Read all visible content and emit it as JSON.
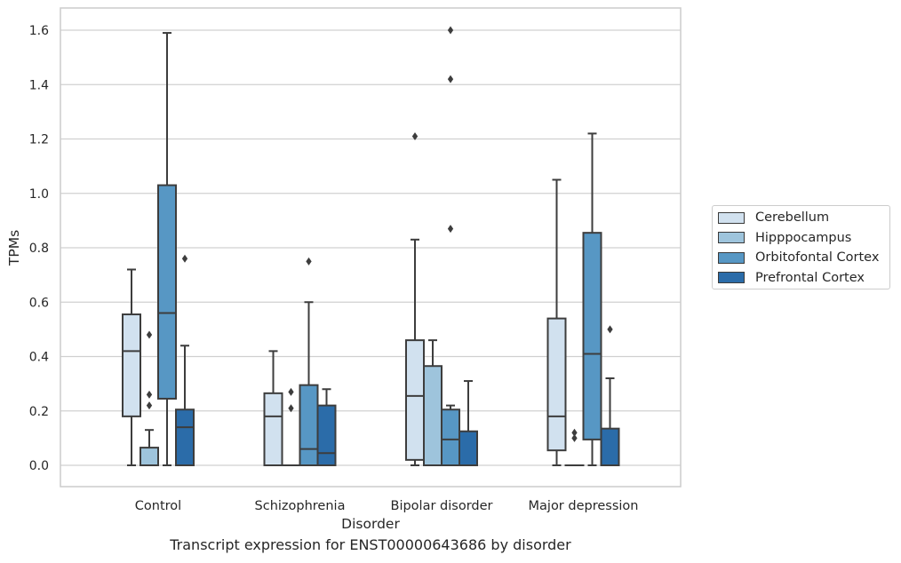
{
  "chart_data": {
    "type": "boxplot",
    "title": "Transcript expression for ENST00000643686 by disorder",
    "xlabel": "Disorder",
    "ylabel": "TPMs",
    "ylim": [
      -0.08,
      1.68
    ],
    "yticks": [
      "0.0",
      "0.2",
      "0.4",
      "0.6",
      "0.8",
      "1.0",
      "1.2",
      "1.4",
      "1.6"
    ],
    "grid": true,
    "legend_position": "right",
    "categories": [
      "Control",
      "Schizophrenia",
      "Bipolar disorder",
      "Major depression"
    ],
    "series": [
      {
        "name": "Cerebellum",
        "color": "#d1e1ef",
        "boxes": [
          {
            "whislo": 0.0,
            "q1": 0.18,
            "med": 0.42,
            "q3": 0.555,
            "whishi": 0.72,
            "fliers": []
          },
          {
            "whislo": 0.0,
            "q1": 0.0,
            "med": 0.18,
            "q3": 0.265,
            "whishi": 0.42,
            "fliers": []
          },
          {
            "whislo": 0.0,
            "q1": 0.02,
            "med": 0.255,
            "q3": 0.46,
            "whishi": 0.83,
            "fliers": [
              1.21
            ]
          },
          {
            "whislo": 0.0,
            "q1": 0.055,
            "med": 0.18,
            "q3": 0.54,
            "whishi": 1.05,
            "fliers": []
          }
        ]
      },
      {
        "name": "Hipppocampus",
        "color": "#9ec4dc",
        "boxes": [
          {
            "whislo": 0.0,
            "q1": 0.0,
            "med": 0.0,
            "q3": 0.065,
            "whishi": 0.13,
            "fliers": [
              0.22,
              0.26,
              0.48
            ]
          },
          {
            "whislo": 0.0,
            "q1": 0.0,
            "med": 0.0,
            "q3": 0.0,
            "whishi": 0.0,
            "fliers": [
              0.21,
              0.27
            ]
          },
          {
            "whislo": 0.0,
            "q1": 0.0,
            "med": 0.0,
            "q3": 0.365,
            "whishi": 0.46,
            "fliers": []
          },
          {
            "whislo": 0.0,
            "q1": 0.0,
            "med": 0.0,
            "q3": 0.0,
            "whishi": 0.0,
            "fliers": [
              0.1,
              0.12
            ]
          }
        ]
      },
      {
        "name": "Orbitofontal Cortex",
        "color": "#5797c4",
        "boxes": [
          {
            "whislo": 0.0,
            "q1": 0.245,
            "med": 0.56,
            "q3": 1.03,
            "whishi": 1.59,
            "fliers": []
          },
          {
            "whislo": 0.0,
            "q1": 0.0,
            "med": 0.06,
            "q3": 0.295,
            "whishi": 0.6,
            "fliers": [
              0.75
            ]
          },
          {
            "whislo": 0.0,
            "q1": 0.0,
            "med": 0.095,
            "q3": 0.205,
            "whishi": 0.22,
            "fliers": [
              0.87,
              1.42,
              1.6
            ]
          },
          {
            "whislo": 0.0,
            "q1": 0.095,
            "med": 0.41,
            "q3": 0.855,
            "whishi": 1.22,
            "fliers": []
          }
        ]
      },
      {
        "name": "Prefrontal Cortex",
        "color": "#2b6ca9",
        "boxes": [
          {
            "whislo": 0.0,
            "q1": 0.0,
            "med": 0.14,
            "q3": 0.205,
            "whishi": 0.44,
            "fliers": [
              0.76
            ]
          },
          {
            "whislo": 0.0,
            "q1": 0.0,
            "med": 0.045,
            "q3": 0.22,
            "whishi": 0.28,
            "fliers": []
          },
          {
            "whislo": 0.0,
            "q1": 0.0,
            "med": 0.0,
            "q3": 0.125,
            "whishi": 0.31,
            "fliers": []
          },
          {
            "whislo": 0.0,
            "q1": 0.0,
            "med": 0.0,
            "q3": 0.135,
            "whishi": 0.32,
            "fliers": [
              0.5
            ]
          }
        ]
      }
    ]
  }
}
